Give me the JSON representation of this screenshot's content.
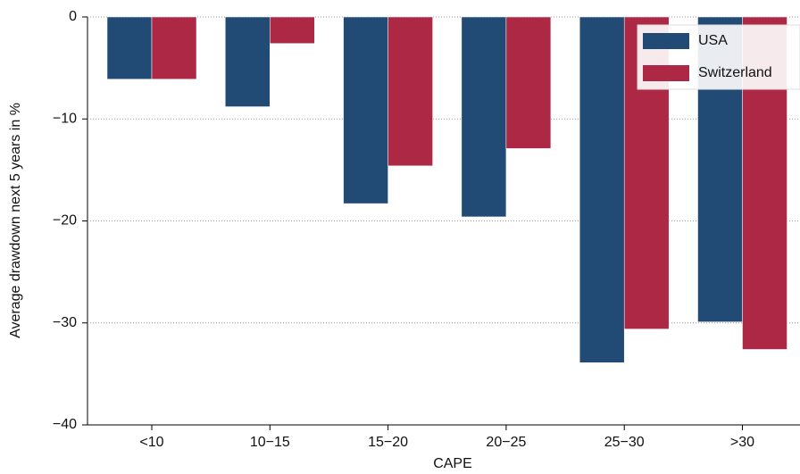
{
  "chart_data": {
    "type": "bar",
    "x_label": "CAPE",
    "y_label": "Average drawdown next 5 years in %",
    "categories": [
      "<10",
      "10−15",
      "15−20",
      "20−25",
      "25−30",
      ">30"
    ],
    "series": [
      {
        "name": "USA",
        "color": "#214a74",
        "values": [
          -6.1,
          -8.8,
          -18.3,
          -19.6,
          -33.9,
          -29.9
        ]
      },
      {
        "name": "Switzerland",
        "color": "#ad2845",
        "values": [
          -6.1,
          -2.6,
          -14.6,
          -12.9,
          -30.6,
          -32.6
        ]
      }
    ],
    "ylim": [
      -40,
      0
    ],
    "yticks": [
      {
        "value": 0,
        "label": "0"
      },
      {
        "value": -10,
        "label": "−10"
      },
      {
        "value": -20,
        "label": "−20"
      },
      {
        "value": -30,
        "label": "−30"
      },
      {
        "value": -40,
        "label": "−40"
      }
    ],
    "grid": true,
    "legend": "top-right"
  }
}
